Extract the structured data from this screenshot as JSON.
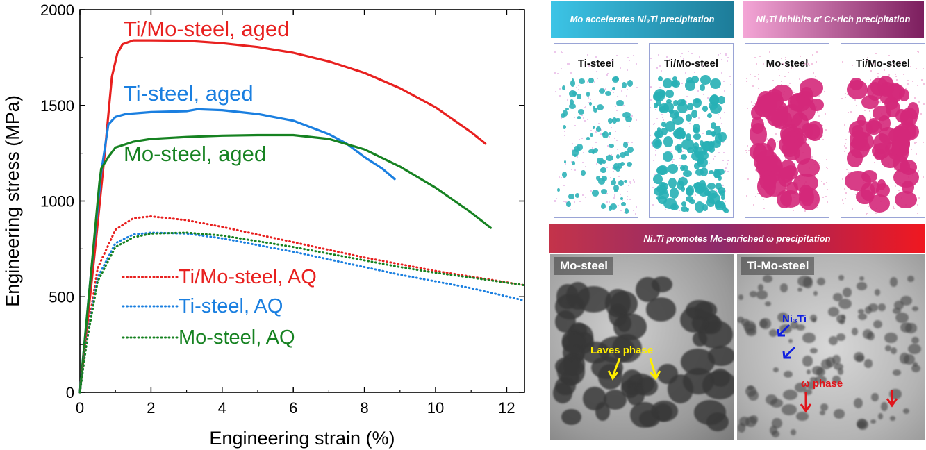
{
  "chart_data": {
    "type": "line",
    "title": "",
    "xlabel": "Engineering strain  (%)",
    "ylabel": "Engineering stress  (MPa)",
    "xlim": [
      0,
      12.5
    ],
    "ylim": [
      0,
      2000
    ],
    "xticks": [
      0,
      2,
      4,
      6,
      8,
      10,
      12
    ],
    "yticks": [
      0,
      500,
      1000,
      1500,
      2000
    ],
    "grid": false,
    "series": [
      {
        "name": "Ti/Mo-steel, aged",
        "style": "solid",
        "color": "#e8201f",
        "x": [
          0,
          0.4,
          0.7,
          0.9,
          1.05,
          1.2,
          1.5,
          2,
          3,
          4,
          5,
          6,
          7,
          8,
          9,
          10,
          11,
          11.4
        ],
        "y": [
          0,
          700,
          1250,
          1650,
          1770,
          1820,
          1840,
          1840,
          1838,
          1825,
          1805,
          1775,
          1730,
          1670,
          1590,
          1490,
          1360,
          1300
        ]
      },
      {
        "name": "Ti-steel, aged",
        "style": "solid",
        "color": "#1a7fe0",
        "x": [
          0,
          0.3,
          0.6,
          0.8,
          1,
          1.3,
          2,
          3,
          3.3,
          4,
          5,
          6,
          7,
          7.5,
          8,
          8.5,
          8.85
        ],
        "y": [
          0,
          600,
          1150,
          1400,
          1440,
          1455,
          1465,
          1470,
          1480,
          1475,
          1455,
          1420,
          1350,
          1300,
          1230,
          1170,
          1115
        ]
      },
      {
        "name": "Mo-steel, aged",
        "style": "solid",
        "color": "#168221",
        "x": [
          0,
          0.3,
          0.55,
          0.6,
          0.8,
          1,
          1.5,
          2,
          3,
          4,
          5,
          6,
          7,
          8,
          9,
          10,
          11,
          11.55
        ],
        "y": [
          0,
          600,
          1100,
          1170,
          1230,
          1280,
          1310,
          1325,
          1335,
          1342,
          1345,
          1345,
          1325,
          1270,
          1180,
          1070,
          940,
          860
        ]
      },
      {
        "name": "Ti/Mo-steel, AQ",
        "style": "dotted",
        "color": "#e8201f",
        "x": [
          0,
          0.2,
          0.5,
          1,
          1.5,
          2,
          3,
          4,
          5,
          6,
          7,
          8,
          9,
          10,
          11,
          12.5
        ],
        "y": [
          0,
          300,
          650,
          850,
          910,
          920,
          900,
          865,
          825,
          785,
          745,
          705,
          670,
          635,
          605,
          560
        ]
      },
      {
        "name": "Ti-steel, AQ",
        "style": "dotted",
        "color": "#1a7fe0",
        "x": [
          0,
          0.2,
          0.5,
          1,
          1.5,
          2,
          3,
          4,
          5,
          6,
          7,
          8,
          9,
          10,
          11,
          12.5
        ],
        "y": [
          0,
          280,
          600,
          780,
          825,
          835,
          830,
          805,
          770,
          735,
          695,
          655,
          615,
          580,
          545,
          480
        ]
      },
      {
        "name": "Mo-steel, AQ",
        "style": "dotted",
        "color": "#168221",
        "x": [
          0,
          0.2,
          0.5,
          1,
          1.5,
          2,
          3,
          4,
          5,
          6,
          7,
          8,
          9,
          10,
          11,
          12.5
        ],
        "y": [
          0,
          270,
          580,
          760,
          810,
          830,
          835,
          820,
          790,
          760,
          725,
          690,
          655,
          625,
          600,
          560
        ]
      }
    ]
  },
  "panels": {
    "banner_cyan": "Mo accelerates Ni₃Ti precipitation",
    "banner_pink": "Ni₃Ti inhibits α′ Cr-rich precipitation",
    "banner_red": "Ni₃Ti promotes Mo-enriched ω precipitation",
    "apt_1": "Ti-steel",
    "apt_2": "Ti/Mo-steel",
    "apt_3": "Mo-steel",
    "apt_4": "Ti/Mo-steel",
    "tem_left": "Mo-steel",
    "tem_right": "Ti-Mo-steel",
    "anno_laves": "Laves phase",
    "anno_ni3ti": "Ni₃Ti",
    "anno_omega": "ω phase",
    "colors": {
      "cyan": "#1fa7c7",
      "magenta": "#d4287a",
      "yellow": "#ffee00",
      "blue": "#1020e0",
      "red": "#e0141a"
    }
  }
}
